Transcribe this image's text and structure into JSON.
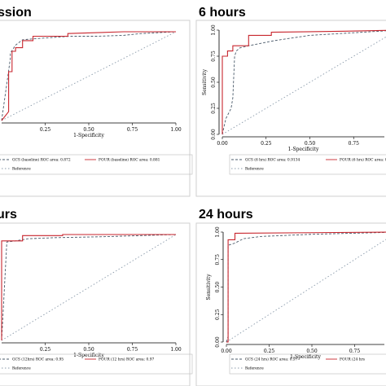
{
  "chart_data": [
    {
      "type": "line",
      "title": "ssion",
      "xlabel": "1-Specificity",
      "ylabel": "",
      "xlim": [
        0,
        1
      ],
      "ylim": [
        0,
        1
      ],
      "xticks": [
        "0.25",
        "0.50",
        "0.75",
        "1.00"
      ],
      "yticks": [],
      "grid": false,
      "legend_items": [
        "GCS (baseline) ROC area: 0.872",
        "FOUR (baseline) ROC area: 0.881",
        "Reference"
      ],
      "series": [
        {
          "name": "GCS (baseline) ROC area: 0.872",
          "color": "#4a5a6a",
          "dash": "3,2",
          "x": [
            0,
            0.05,
            0.05,
            0.08,
            0.1,
            0.12,
            0.25,
            0.4,
            0.55,
            0.7,
            0.8,
            1.0
          ],
          "y": [
            0.0,
            0.7,
            0.76,
            0.85,
            0.88,
            0.91,
            0.93,
            0.95,
            0.95,
            0.96,
            0.98,
            1.0
          ]
        },
        {
          "name": "FOUR (baseline) ROC area: 0.881",
          "color": "#c8262e",
          "dash": "",
          "x": [
            0,
            0.04,
            0.04,
            0.06,
            0.06,
            0.08,
            0.08,
            0.12,
            0.12,
            0.18,
            0.18,
            0.38,
            0.38,
            0.7,
            1.0
          ],
          "y": [
            0.0,
            0.1,
            0.55,
            0.55,
            0.78,
            0.78,
            0.82,
            0.82,
            0.9,
            0.9,
            0.95,
            0.95,
            0.98,
            1.0,
            1.0
          ]
        },
        {
          "name": "Reference",
          "color": "#8a9aaa",
          "dash": "1.5,2.5",
          "x": [
            0,
            1
          ],
          "y": [
            0,
            1
          ]
        }
      ]
    },
    {
      "type": "line",
      "title": "6 hours",
      "xlabel": "1-Specificity",
      "ylabel": "Sensitivity",
      "xlim": [
        0,
        1
      ],
      "ylim": [
        0,
        1
      ],
      "xticks": [
        "0.00",
        "0.25",
        "0.50",
        "0.75"
      ],
      "yticks": [
        "0.00",
        "0.25",
        "0.50",
        "0.75",
        "1.00"
      ],
      "grid": false,
      "legend_items": [
        "GCS (6 hrs) ROC area: 0.9134",
        "FOUR (6 hrs) ROC area: 0.",
        "Reference"
      ],
      "series": [
        {
          "name": "GCS (6 hrs) ROC area: 0.9134",
          "color": "#4a5a6a",
          "dash": "3,2",
          "x": [
            0,
            0.02,
            0.05,
            0.06,
            0.07,
            0.08,
            0.1,
            0.15,
            0.3,
            0.5,
            0.8,
            1.0
          ],
          "y": [
            0.0,
            0.15,
            0.25,
            0.35,
            0.75,
            0.8,
            0.83,
            0.85,
            0.9,
            0.95,
            0.98,
            1.0
          ]
        },
        {
          "name": "FOUR (6 hrs) ROC area: 0.",
          "color": "#c8262e",
          "dash": "",
          "x": [
            0,
            0.0,
            0.03,
            0.03,
            0.06,
            0.06,
            0.15,
            0.15,
            0.28,
            0.28,
            0.7,
            1.0
          ],
          "y": [
            0.0,
            0.75,
            0.75,
            0.8,
            0.8,
            0.85,
            0.85,
            0.95,
            0.95,
            0.98,
            0.99,
            1.0
          ]
        },
        {
          "name": "Reference",
          "color": "#8a9aaa",
          "dash": "1.5,2.5",
          "x": [
            0,
            1
          ],
          "y": [
            0,
            1
          ]
        }
      ]
    },
    {
      "type": "line",
      "title": "urs",
      "xlabel": "1-Specificity",
      "ylabel": "",
      "xlim": [
        0,
        1
      ],
      "ylim": [
        0,
        1
      ],
      "xticks": [
        "0.25",
        "0.50",
        "0.75",
        "1.00"
      ],
      "yticks": [],
      "grid": false,
      "legend_items": [
        "GCS (12hrs) ROC area: 0.95",
        "FOUR (12 hrs) ROC area: 0.97",
        "Reference"
      ],
      "series": [
        {
          "name": "GCS (12hrs) ROC area: 0.95",
          "color": "#4a5a6a",
          "dash": "3,2",
          "x": [
            0,
            0.03,
            0.08,
            0.15,
            0.3,
            0.6,
            1.0
          ],
          "y": [
            0.0,
            0.93,
            0.94,
            0.96,
            0.97,
            0.98,
            1.0
          ]
        },
        {
          "name": "FOUR (12 hrs) ROC area: 0.97",
          "color": "#c8262e",
          "dash": "",
          "x": [
            0,
            0.0,
            0.12,
            0.12,
            0.35,
            0.35,
            1.0
          ],
          "y": [
            0.0,
            0.94,
            0.94,
            0.99,
            0.99,
            1.0,
            1.0
          ]
        },
        {
          "name": "Reference",
          "color": "#8a9aaa",
          "dash": "1.5,2.5",
          "x": [
            0,
            1
          ],
          "y": [
            0,
            1
          ]
        }
      ]
    },
    {
      "type": "line",
      "title": "24 hours",
      "xlabel": "1-Specificity",
      "ylabel": "Sensitivity",
      "xlim": [
        0,
        1
      ],
      "ylim": [
        0,
        1
      ],
      "xticks": [
        "0.00",
        "0.25",
        "0.50",
        "0.75",
        "1.00"
      ],
      "yticks": [
        "0.00",
        "0.25",
        "0.50",
        "0.75",
        "1.00"
      ],
      "grid": false,
      "legend_items": [
        "GCS (24 hrs) ROC area: 0.97",
        "FOUR (24 hrs",
        "Reference"
      ],
      "series": [
        {
          "name": "GCS (24 hrs) ROC area: 0.97",
          "color": "#4a5a6a",
          "dash": "3,2",
          "x": [
            0,
            0.01,
            0.01,
            0.05,
            0.1,
            0.2,
            0.5,
            1.0
          ],
          "y": [
            0.0,
            0.05,
            0.88,
            0.9,
            0.94,
            0.96,
            0.98,
            1.0
          ]
        },
        {
          "name": "FOUR (24 hrs",
          "color": "#c8262e",
          "dash": "",
          "x": [
            0,
            0.01,
            0.01,
            0.05,
            0.05,
            1.0
          ],
          "y": [
            0.0,
            0.0,
            0.93,
            0.93,
            0.99,
            1.0
          ]
        },
        {
          "name": "Reference",
          "color": "#8a9aaa",
          "dash": "1.5,2.5",
          "x": [
            0,
            1
          ],
          "y": [
            0,
            1
          ]
        }
      ]
    }
  ]
}
